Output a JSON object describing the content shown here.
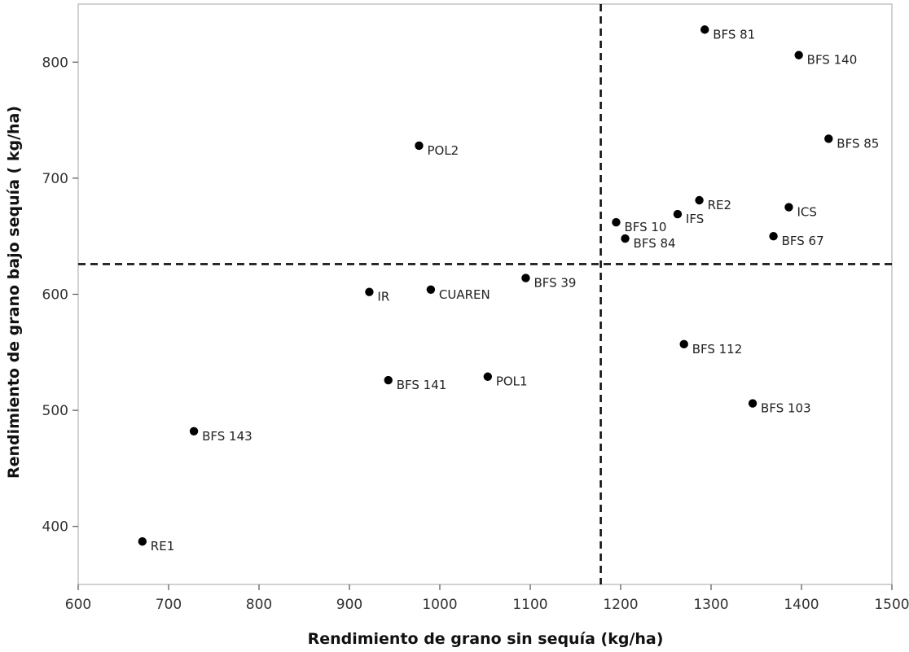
{
  "chart_data": {
    "type": "scatter",
    "title": "",
    "xlabel": "Rendimiento de grano sin sequía (kg/ha)",
    "ylabel": "Rendimiento de grano bajo sequía ( kg/ha)",
    "xlim": [
      600,
      1500
    ],
    "ylim": [
      350,
      850
    ],
    "x_ticks": [
      600,
      700,
      800,
      900,
      1000,
      1100,
      1200,
      1300,
      1400,
      1500
    ],
    "y_ticks": [
      400,
      500,
      600,
      700,
      800
    ],
    "grid": false,
    "reference_lines": {
      "x": 1178,
      "y": 626
    },
    "points": [
      {
        "label": "BFS 81",
        "x": 1293,
        "y": 828
      },
      {
        "label": "BFS 140",
        "x": 1397,
        "y": 806
      },
      {
        "label": "BFS 85",
        "x": 1430,
        "y": 734
      },
      {
        "label": "POL2",
        "x": 977,
        "y": 728
      },
      {
        "label": "RE2",
        "x": 1287,
        "y": 681
      },
      {
        "label": "ICS",
        "x": 1386,
        "y": 675
      },
      {
        "label": "IFS",
        "x": 1263,
        "y": 669
      },
      {
        "label": "BFS 10",
        "x": 1195,
        "y": 662
      },
      {
        "label": "BFS 67",
        "x": 1369,
        "y": 650
      },
      {
        "label": "BFS 84",
        "x": 1205,
        "y": 648
      },
      {
        "label": "BFS 39",
        "x": 1095,
        "y": 614
      },
      {
        "label": "CUAREN",
        "x": 990,
        "y": 604
      },
      {
        "label": "IR",
        "x": 922,
        "y": 602
      },
      {
        "label": "BFS 112",
        "x": 1270,
        "y": 557
      },
      {
        "label": "POL1",
        "x": 1053,
        "y": 529
      },
      {
        "label": "BFS 141",
        "x": 943,
        "y": 526
      },
      {
        "label": "BFS 103",
        "x": 1346,
        "y": 506
      },
      {
        "label": "BFS 143",
        "x": 728,
        "y": 482
      },
      {
        "label": "RE1",
        "x": 671,
        "y": 387
      }
    ]
  }
}
